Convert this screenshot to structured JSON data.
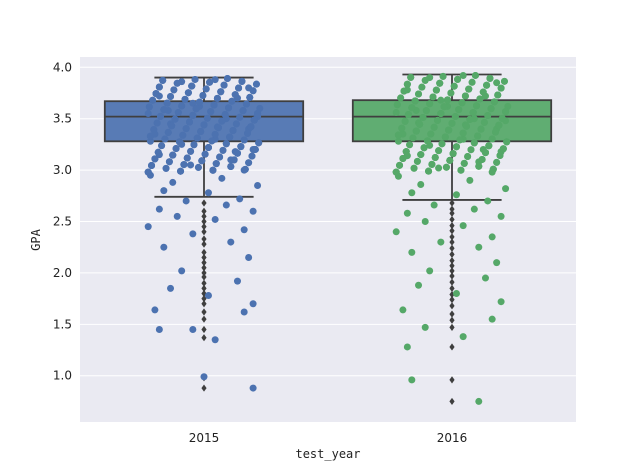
{
  "chart_data": {
    "type": "box",
    "title": "",
    "xlabel": "test_year",
    "ylabel": "GPA",
    "categories": [
      "2015",
      "2016"
    ],
    "ylim": [
      0.55,
      4.1
    ],
    "yticks": [
      1.0,
      1.5,
      2.0,
      2.5,
      3.0,
      3.5,
      4.0
    ],
    "ytick_labels": [
      "1.0",
      "1.5",
      "2.0",
      "2.5",
      "3.0",
      "3.5",
      "4.0"
    ],
    "grid": true,
    "series": [
      {
        "category": "2015",
        "color": "#4c72b0",
        "box_color": "#4c72b0",
        "q1": 3.28,
        "median": 3.52,
        "q3": 3.67,
        "whisker_low": 2.74,
        "whisker_high": 3.9,
        "outliers": [
          2.68,
          2.6,
          2.55,
          2.5,
          2.45,
          2.4,
          2.33,
          2.28,
          2.2,
          2.15,
          2.1,
          2.05,
          2.0,
          1.96,
          1.9,
          1.85,
          1.8,
          1.75,
          1.7,
          1.62,
          1.55,
          1.45,
          1.37,
          0.98,
          0.88
        ],
        "points": [
          [
            0.05,
            3.88
          ],
          [
            -0.1,
            3.86
          ],
          [
            0.2,
            3.8
          ],
          [
            -0.2,
            3.72
          ],
          [
            0.15,
            3.7
          ],
          [
            -0.05,
            3.65
          ],
          [
            0.25,
            3.6
          ],
          [
            -0.25,
            3.55
          ],
          [
            0.1,
            3.5
          ],
          [
            -0.15,
            3.45
          ],
          [
            0.2,
            3.4
          ],
          [
            -0.22,
            3.35
          ],
          [
            0.05,
            3.3
          ],
          [
            -0.1,
            3.25
          ],
          [
            0.22,
            3.2
          ],
          [
            -0.2,
            3.15
          ],
          [
            0.12,
            3.1
          ],
          [
            -0.06,
            3.05
          ],
          [
            0.18,
            3.0
          ],
          [
            -0.24,
            2.95
          ],
          [
            0.08,
            2.92
          ],
          [
            -0.14,
            2.88
          ],
          [
            0.24,
            2.85
          ],
          [
            -0.18,
            2.8
          ],
          [
            0.02,
            2.78
          ],
          [
            0.16,
            2.72
          ],
          [
            -0.08,
            2.7
          ],
          [
            0.1,
            2.66
          ],
          [
            -0.2,
            2.62
          ],
          [
            0.22,
            2.6
          ],
          [
            -0.12,
            2.55
          ],
          [
            0.05,
            2.52
          ],
          [
            -0.25,
            2.45
          ],
          [
            0.18,
            2.42
          ],
          [
            -0.05,
            2.38
          ],
          [
            0.12,
            2.3
          ],
          [
            -0.18,
            2.25
          ],
          [
            0.2,
            2.15
          ],
          [
            -0.1,
            2.02
          ],
          [
            0.15,
            1.92
          ],
          [
            -0.15,
            1.85
          ],
          [
            0.02,
            1.78
          ],
          [
            0.22,
            1.7
          ],
          [
            -0.22,
            1.64
          ],
          [
            0.18,
            1.62
          ],
          [
            -0.05,
            1.45
          ],
          [
            0.05,
            1.35
          ],
          [
            -0.2,
            1.45
          ],
          [
            0.0,
            0.99
          ],
          [
            0.22,
            0.88
          ],
          [
            -0.02,
            3.62
          ],
          [
            0.06,
            3.42
          ],
          [
            -0.16,
            3.58
          ],
          [
            0.24,
            3.52
          ],
          [
            -0.24,
            3.28
          ],
          [
            0.14,
            3.18
          ]
        ]
      },
      {
        "category": "2016",
        "color": "#55a868",
        "box_color": "#55a868",
        "q1": 3.28,
        "median": 3.52,
        "q3": 3.68,
        "whisker_low": 2.71,
        "whisker_high": 3.93,
        "outliers": [
          2.68,
          2.62,
          2.58,
          2.52,
          2.46,
          2.41,
          2.35,
          2.3,
          2.24,
          2.18,
          2.12,
          2.07,
          2.02,
          1.97,
          1.91,
          1.85,
          1.79,
          1.74,
          1.68,
          1.6,
          1.54,
          1.47,
          1.28,
          0.96,
          0.75
        ],
        "points": [
          [
            0.05,
            3.92
          ],
          [
            -0.1,
            3.9
          ],
          [
            0.2,
            3.85
          ],
          [
            -0.2,
            3.78
          ],
          [
            0.15,
            3.72
          ],
          [
            -0.05,
            3.68
          ],
          [
            0.25,
            3.62
          ],
          [
            -0.25,
            3.56
          ],
          [
            0.1,
            3.5
          ],
          [
            -0.15,
            3.46
          ],
          [
            0.2,
            3.4
          ],
          [
            -0.22,
            3.35
          ],
          [
            0.05,
            3.3
          ],
          [
            -0.1,
            3.24
          ],
          [
            0.22,
            3.18
          ],
          [
            -0.2,
            3.14
          ],
          [
            0.12,
            3.08
          ],
          [
            -0.06,
            3.02
          ],
          [
            0.18,
            2.98
          ],
          [
            -0.24,
            2.94
          ],
          [
            0.08,
            2.9
          ],
          [
            -0.14,
            2.86
          ],
          [
            0.24,
            2.82
          ],
          [
            -0.18,
            2.78
          ],
          [
            0.02,
            2.76
          ],
          [
            0.16,
            2.7
          ],
          [
            -0.08,
            2.66
          ],
          [
            0.1,
            2.62
          ],
          [
            -0.2,
            2.58
          ],
          [
            0.22,
            2.55
          ],
          [
            -0.12,
            2.5
          ],
          [
            0.05,
            2.46
          ],
          [
            -0.25,
            2.4
          ],
          [
            0.18,
            2.35
          ],
          [
            -0.05,
            2.3
          ],
          [
            0.12,
            2.25
          ],
          [
            -0.18,
            2.2
          ],
          [
            0.2,
            2.1
          ],
          [
            -0.1,
            2.02
          ],
          [
            0.15,
            1.95
          ],
          [
            -0.15,
            1.88
          ],
          [
            0.02,
            1.8
          ],
          [
            0.22,
            1.72
          ],
          [
            -0.22,
            1.64
          ],
          [
            0.18,
            1.55
          ],
          [
            -0.12,
            1.47
          ],
          [
            0.05,
            1.38
          ],
          [
            -0.2,
            1.28
          ],
          [
            -0.18,
            0.96
          ],
          [
            0.12,
            0.75
          ],
          [
            -0.02,
            3.62
          ],
          [
            0.06,
            3.44
          ],
          [
            -0.16,
            3.58
          ],
          [
            0.24,
            3.48
          ],
          [
            -0.24,
            3.28
          ],
          [
            0.14,
            3.2
          ]
        ]
      }
    ],
    "colors": {
      "plot_background": "#eaeaf2",
      "grid": "#ffffff",
      "box_edge": "#3f3f3f",
      "figure_background": "#ffffff"
    }
  }
}
